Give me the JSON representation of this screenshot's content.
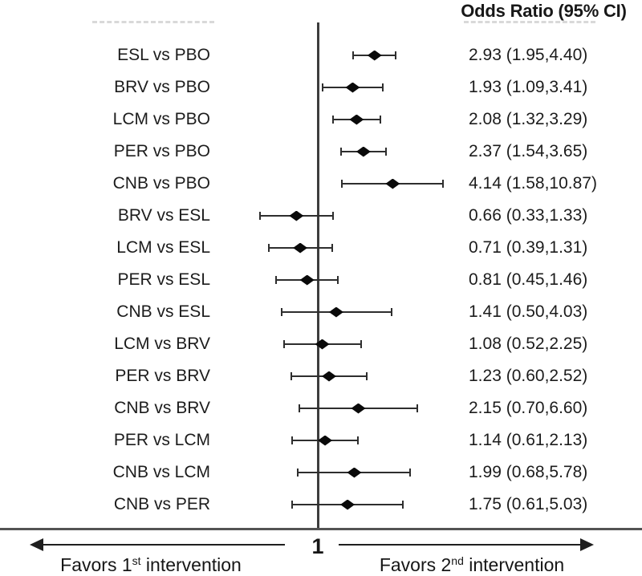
{
  "title": "Odds Ratio (95% CI)",
  "axis": {
    "null_label": "1",
    "favors_left": {
      "pre": "Favors 1",
      "sup": "st",
      "post": " intervention"
    },
    "favors_right": {
      "pre": "Favors 2",
      "sup": "nd",
      "post": " intervention"
    }
  },
  "colors": {
    "text": "#1c1c1c",
    "lines": "#2e2e2e",
    "diamond": "#0a0a0a",
    "background": "#ffffff"
  },
  "chart_data": {
    "type": "forest",
    "title": "Odds Ratio (95% CI)",
    "x_scale": "log10",
    "null_value": 1,
    "legend_position": "none",
    "grid": false,
    "rows": [
      {
        "label": "ESL vs PBO",
        "or": 2.93,
        "lo": 1.95,
        "hi": 4.4,
        "text": "2.93 (1.95,4.40)"
      },
      {
        "label": "BRV vs PBO",
        "or": 1.93,
        "lo": 1.09,
        "hi": 3.41,
        "text": "1.93 (1.09,3.41)"
      },
      {
        "label": "LCM vs PBO",
        "or": 2.08,
        "lo": 1.32,
        "hi": 3.29,
        "text": "2.08 (1.32,3.29)"
      },
      {
        "label": "PER vs PBO",
        "or": 2.37,
        "lo": 1.54,
        "hi": 3.65,
        "text": "2.37 (1.54,3.65)"
      },
      {
        "label": "CNB vs PBO",
        "or": 4.14,
        "lo": 1.58,
        "hi": 10.87,
        "text": "4.14 (1.58,10.87)"
      },
      {
        "label": "BRV vs ESL",
        "or": 0.66,
        "lo": 0.33,
        "hi": 1.33,
        "text": "0.66 (0.33,1.33)"
      },
      {
        "label": "LCM vs ESL",
        "or": 0.71,
        "lo": 0.39,
        "hi": 1.31,
        "text": "0.71 (0.39,1.31)"
      },
      {
        "label": "PER vs ESL",
        "or": 0.81,
        "lo": 0.45,
        "hi": 1.46,
        "text": "0.81 (0.45,1.46)"
      },
      {
        "label": "CNB vs ESL",
        "or": 1.41,
        "lo": 0.5,
        "hi": 4.03,
        "text": "1.41 (0.50,4.03)"
      },
      {
        "label": "LCM vs BRV",
        "or": 1.08,
        "lo": 0.52,
        "hi": 2.25,
        "text": "1.08 (0.52,2.25)"
      },
      {
        "label": "PER vs BRV",
        "or": 1.23,
        "lo": 0.6,
        "hi": 2.52,
        "text": "1.23 (0.60,2.52)"
      },
      {
        "label": "CNB vs BRV",
        "or": 2.15,
        "lo": 0.7,
        "hi": 6.6,
        "text": "2.15 (0.70,6.60)"
      },
      {
        "label": "PER vs LCM",
        "or": 1.14,
        "lo": 0.61,
        "hi": 2.13,
        "text": "1.14 (0.61,2.13)"
      },
      {
        "label": "CNB vs LCM",
        "or": 1.99,
        "lo": 0.68,
        "hi": 5.78,
        "text": "1.99 (0.68,5.78)"
      },
      {
        "label": "CNB vs PER",
        "or": 1.75,
        "lo": 0.61,
        "hi": 5.03,
        "text": "1.75 (0.61,5.03)"
      }
    ]
  }
}
